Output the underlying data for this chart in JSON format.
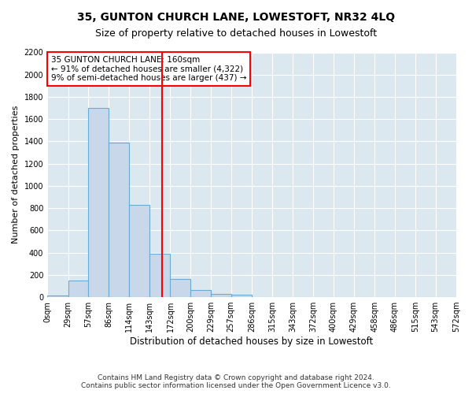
{
  "title": "35, GUNTON CHURCH LANE, LOWESTOFT, NR32 4LQ",
  "subtitle": "Size of property relative to detached houses in Lowestoft",
  "xlabel": "Distribution of detached houses by size in Lowestoft",
  "ylabel": "Number of detached properties",
  "bin_edges": [
    0,
    29,
    57,
    86,
    114,
    143,
    172,
    200,
    229,
    257,
    286,
    315,
    343,
    372,
    400,
    429,
    458,
    486,
    515,
    543,
    572
  ],
  "bin_labels": [
    "0sqm",
    "29sqm",
    "57sqm",
    "86sqm",
    "114sqm",
    "143sqm",
    "172sqm",
    "200sqm",
    "229sqm",
    "257sqm",
    "286sqm",
    "315sqm",
    "343sqm",
    "372sqm",
    "400sqm",
    "429sqm",
    "458sqm",
    "486sqm",
    "515sqm",
    "543sqm",
    "572sqm"
  ],
  "counts": [
    15,
    150,
    1700,
    1390,
    830,
    390,
    160,
    65,
    30,
    25,
    0,
    0,
    0,
    0,
    0,
    0,
    0,
    0,
    0,
    0
  ],
  "bar_color": "#c8d8ea",
  "bar_edge_color": "#6aaad4",
  "vline_x": 160,
  "vline_color": "red",
  "ylim": [
    0,
    2200
  ],
  "yticks": [
    0,
    200,
    400,
    600,
    800,
    1000,
    1200,
    1400,
    1600,
    1800,
    2000,
    2200
  ],
  "annotation_text": "35 GUNTON CHURCH LANE: 160sqm\n← 91% of detached houses are smaller (4,322)\n9% of semi-detached houses are larger (437) →",
  "annotation_box_color": "white",
  "annotation_box_edge_color": "red",
  "footer_line1": "Contains HM Land Registry data © Crown copyright and database right 2024.",
  "footer_line2": "Contains public sector information licensed under the Open Government Licence v3.0.",
  "fig_background_color": "#ffffff",
  "axes_background_color": "#dce8f0",
  "grid_color": "#ffffff",
  "title_fontsize": 10,
  "subtitle_fontsize": 9,
  "xlabel_fontsize": 8.5,
  "ylabel_fontsize": 8,
  "tick_fontsize": 7,
  "annotation_fontsize": 7.5,
  "footer_fontsize": 6.5
}
